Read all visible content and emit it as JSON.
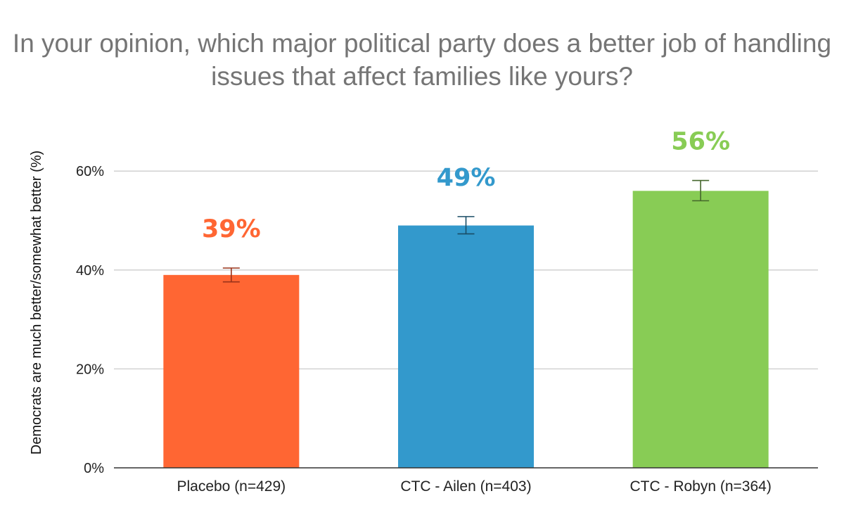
{
  "chart_data": {
    "type": "bar",
    "title": "In your opinion, which major political party does a better job of handling issues that affect families like yours?",
    "xlabel": "",
    "ylabel": "Democrats are much better/somewhat better (%)",
    "ylim": [
      0,
      70
    ],
    "yticks": [
      0,
      20,
      40,
      60
    ],
    "ytick_labels": [
      "0%",
      "20%",
      "40%",
      "60%"
    ],
    "grid": true,
    "legend": "none",
    "categories": [
      "Placebo (n=429)",
      "CTC - Ailen (n=403)",
      "CTC - Robyn (n=364)"
    ],
    "values": [
      39,
      49,
      56
    ],
    "value_labels": [
      "39%",
      "49%",
      "56%"
    ],
    "error_bars": [
      {
        "low": 37.6,
        "high": 40.4
      },
      {
        "low": 47.3,
        "high": 50.8
      },
      {
        "low": 54.0,
        "high": 58.1
      }
    ],
    "colors": [
      "#FF6633",
      "#3399CC",
      "#88CC55"
    ],
    "error_bar_colors": [
      "#99331A",
      "#1A4D66",
      "#44662B"
    ],
    "gridline_color": "#CCCCCC",
    "axis_color": "#333333",
    "title_color": "#757575"
  }
}
